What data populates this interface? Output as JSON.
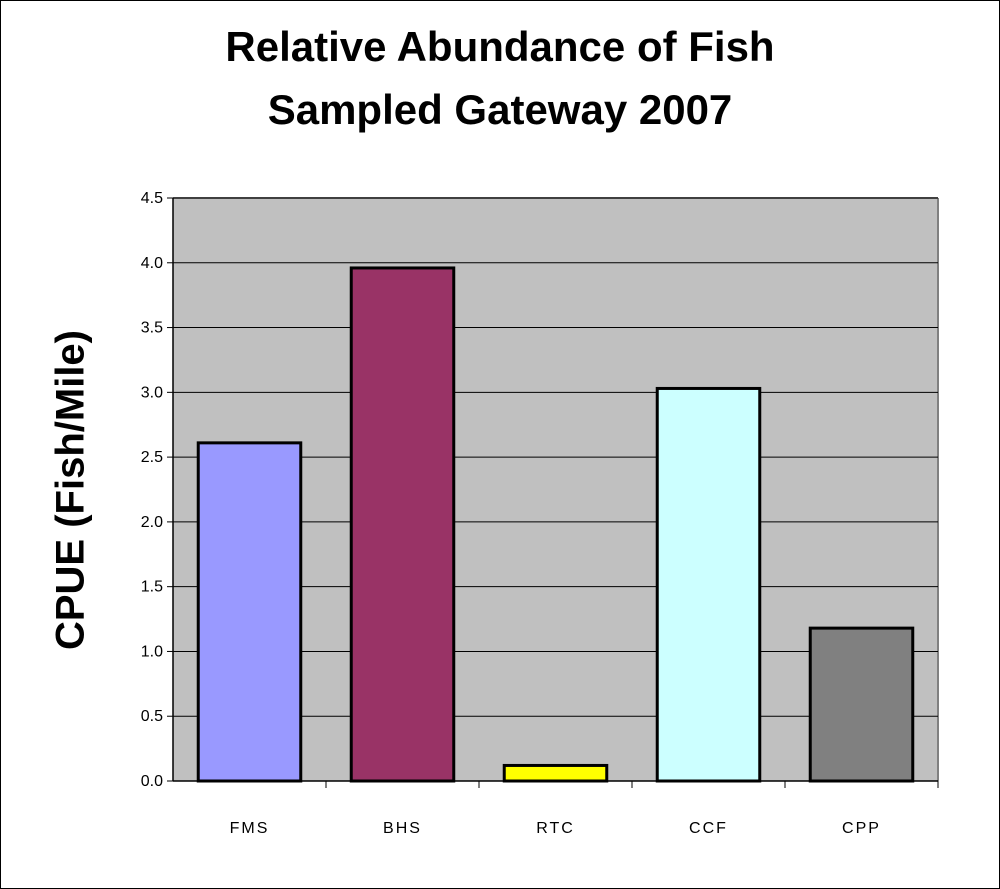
{
  "chart_data": {
    "type": "bar",
    "title_line1": "Relative Abundance of Fish",
    "title_line2": "Sampled Gateway 2007",
    "xlabel": "",
    "ylabel": "CPUE (Fish/Mile)",
    "ylim": [
      0,
      4.5
    ],
    "yticks": [
      "0.0",
      "0.5",
      "1.0",
      "1.5",
      "2.0",
      "2.5",
      "3.0",
      "3.5",
      "4.0",
      "4.5"
    ],
    "categories": [
      "FMS",
      "BHS",
      "RTC",
      "CCF",
      "CPP"
    ],
    "values": [
      2.61,
      3.96,
      0.12,
      3.03,
      1.18
    ],
    "colors": [
      "#9999ff",
      "#993366",
      "#ffff00",
      "#ccffff",
      "#808080"
    ],
    "plot_background": "#c0c0c0",
    "grid": true,
    "legend": "none"
  }
}
